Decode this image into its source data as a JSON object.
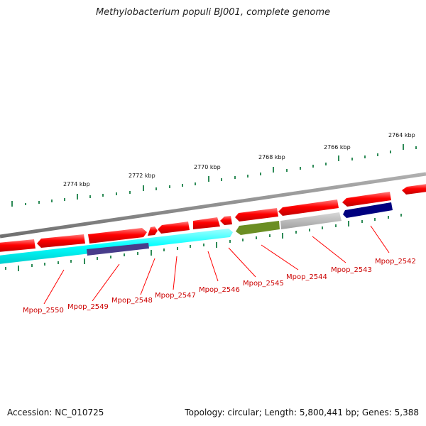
{
  "title": "Methylobacterium populi BJ001, complete genome",
  "footer": {
    "accession": "Accession: NC_010725",
    "summary": "Topology: circular; Length: 5,800,441 bp; Genes: 5,388"
  },
  "colors": {
    "backbone": "#808080",
    "forward_gene": "#ff0000",
    "reverse_cds_cyan": "#00ffff",
    "reverse_cds_olive": "#6b8e23",
    "reverse_cds_gray": "#b0b0b0",
    "reverse_cds_navy": "#00007f",
    "reverse_cds_slate": "#483d8b",
    "tick_major": "#2e8b57",
    "label_line": "#ff0000"
  },
  "scale": {
    "tick_labels": [
      "2774 kbp",
      "2772 kbp",
      "2770 kbp",
      "2768 kbp",
      "2766 kbp",
      "2764 kbp"
    ]
  },
  "genes": {
    "labels": [
      "Mpop_2550",
      "Mpop_2549",
      "Mpop_2548",
      "Mpop_2547",
      "Mpop_2546",
      "Mpop_2545",
      "Mpop_2544",
      "Mpop_2543",
      "Mpop_2542"
    ]
  }
}
